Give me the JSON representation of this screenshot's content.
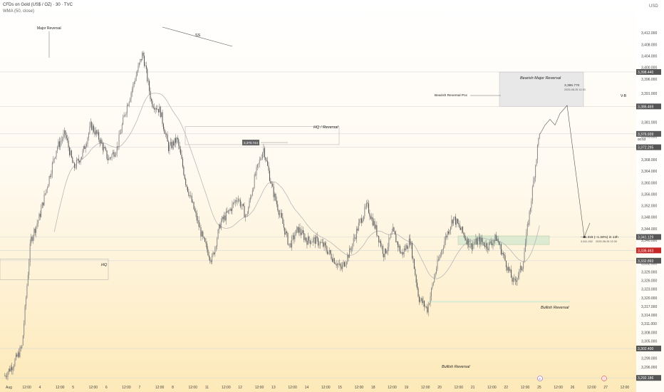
{
  "header": {
    "title": "CFDs on Gold (US$ / OZ) · 30 · TVC",
    "indicator": "WMA (50, close)",
    "currency": "USD"
  },
  "colors": {
    "candle": "#555555",
    "wick": "#6a6a6a",
    "wma": "#b8b8b8",
    "box_fill": "#e8e8e8",
    "green_zone": "#d6e8cf",
    "grid": "#d8d8d8",
    "bg_top": "#ffffff",
    "bg_bottom": "#fde9b8",
    "label_dark": "#555555",
    "label_red": "#c62828",
    "label_current": "#5b5b5b"
  },
  "chart_data": {
    "type": "candlestick",
    "ylim": [
      3291.5,
      3416.5
    ],
    "y_ticks": [
      "3,412.000",
      "3,408.000",
      "3,404.000",
      "3,400.000",
      "3,396.000",
      "3,391.000",
      "3,386.000",
      "3,381.000",
      "3,376.000",
      "3,372.000",
      "3,368.000",
      "3,364.000",
      "3,360.000",
      "3,356.000",
      "3,352.000",
      "3,348.000",
      "3,344.000",
      "3,340.000",
      "3,336.000",
      "3,332.000",
      "3,329.000",
      "3,326.000",
      "3,323.000",
      "3,320.000",
      "3,317.000",
      "3,314.000",
      "3,311.000",
      "3,308.000",
      "3,305.000",
      "3,302.000",
      "3,299.000",
      "3,296.000"
    ],
    "x_ticks": [
      "Aug",
      "12:00",
      "4",
      "12:00",
      "5",
      "12:00",
      "6",
      "12:00",
      "7",
      "12:00",
      "8",
      "12:00",
      "11",
      "12:00",
      "12",
      "12:00",
      "13",
      "12:00",
      "14",
      "12:00",
      "15",
      "12:00",
      "18",
      "12:00",
      "19",
      "12:00",
      "20",
      "12:00",
      "21",
      "12:00",
      "22",
      "12:00",
      "25",
      "12:00",
      "26",
      "12:00",
      "27",
      "12:00"
    ],
    "price_labels": [
      "3,398.440",
      "3,386.469",
      "3,376.939",
      "3,372.295",
      "3,341.129",
      "3,336.463",
      "3,332.893",
      "3,302.400",
      "3,292.186"
    ],
    "current_price_sub": "00:53",
    "anchor_closes": [
      3293,
      3297,
      3303,
      3340,
      3348,
      3360,
      3372,
      3377,
      3365,
      3370,
      3380,
      3375,
      3368,
      3372,
      3385,
      3395,
      3405,
      3388,
      3385,
      3372,
      3375,
      3360,
      3350,
      3340,
      3333,
      3346,
      3350,
      3355,
      3348,
      3362,
      3372,
      3358,
      3348,
      3338,
      3344,
      3340,
      3340,
      3338,
      3334,
      3330,
      3336,
      3345,
      3352,
      3344,
      3335,
      3343,
      3335,
      3340,
      3320,
      3316,
      3330,
      3340,
      3348,
      3343,
      3338,
      3340,
      3338,
      3341,
      3333,
      3325,
      3331,
      3353,
      3378
    ],
    "projection": [
      [
        3376.9,
        0
      ],
      [
        3380,
        1
      ],
      [
        3382,
        2
      ],
      [
        3380,
        3
      ],
      [
        3384,
        4
      ],
      [
        3386.8,
        5
      ],
      [
        3341.1,
        6
      ],
      [
        3346,
        7
      ]
    ],
    "annotations": {
      "major_reversal": "Major Reversal",
      "ss": "SS",
      "hq_reversal": "HQ / Reversal",
      "hq": "HQ",
      "hq_price": "3,370.744",
      "bearish_major": "Bearish Major Reversal",
      "bearish_poc": "Bearish Reversal Poc",
      "bearish_price": "3,386.770",
      "bearish_date": "2025-08-25 11:30",
      "vb": "V-B",
      "bullish_reversal_1": "Bullish Reversal",
      "bullish_reversal_2": "Bullish Reversal",
      "target_change": "−45.318 (−1.34%) in 13h",
      "target_price": "3,341.452",
      "target_date": "2025-08-26 02:30",
      "event_badge": "E"
    }
  }
}
